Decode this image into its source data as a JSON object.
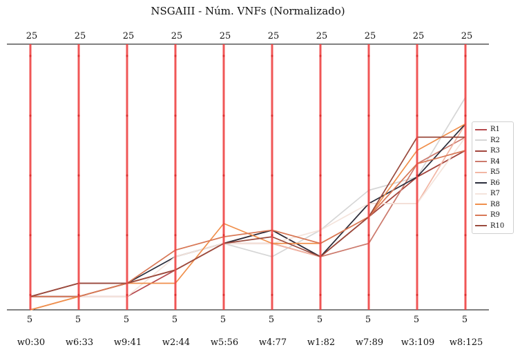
{
  "chart_data": {
    "type": "parallel-coordinates",
    "title": "NSGAIII - Núm. VNFs (Normalizado)",
    "axes": [
      "w0:30",
      "w6:33",
      "w9:41",
      "w2:44",
      "w5:56",
      "w4:77",
      "w1:82",
      "w7:89",
      "w3:109",
      "w8:125"
    ],
    "axis_min_label": "5",
    "axis_max_label": "25",
    "ylim": [
      5,
      25
    ],
    "grid": false,
    "legend_placement": "right",
    "axis_color": "#ee4444",
    "series": [
      {
        "name": "R1",
        "color": "#b5474c",
        "values": [
          6,
          6,
          6,
          8,
          10,
          10,
          9,
          12,
          15,
          17
        ]
      },
      {
        "name": "R2",
        "color": "#d6d6d6",
        "values": [
          5,
          6,
          7,
          8,
          10,
          9,
          11,
          14,
          15,
          21
        ]
      },
      {
        "name": "R3",
        "color": "#a2463d",
        "values": [
          6,
          7,
          7,
          8,
          10,
          11,
          9,
          12,
          15,
          17
        ]
      },
      {
        "name": "R4",
        "color": "#cc7a6d",
        "values": [
          6,
          6,
          7,
          8,
          10,
          11,
          9,
          10,
          16,
          18
        ]
      },
      {
        "name": "R5",
        "color": "#f2b6a4",
        "values": [
          5,
          6,
          7,
          8,
          10,
          10,
          9,
          13,
          13,
          19
        ]
      },
      {
        "name": "R6",
        "color": "#2a2d3b",
        "values": [
          6,
          6,
          7,
          9,
          10,
          11,
          9,
          13,
          15,
          19
        ]
      },
      {
        "name": "R7",
        "color": "#f4e4dc",
        "values": [
          5,
          6,
          6,
          9,
          10,
          10,
          11,
          13,
          13,
          18
        ]
      },
      {
        "name": "R8",
        "color": "#f08f4b",
        "values": [
          5,
          6,
          7,
          7,
          11.5,
          10,
          10,
          12,
          17,
          19
        ]
      },
      {
        "name": "R9",
        "color": "#d87856",
        "values": [
          6,
          6,
          7,
          9.5,
          10.5,
          11,
          10,
          12,
          16,
          17
        ]
      },
      {
        "name": "R10",
        "color": "#9a4a3d",
        "values": [
          6,
          7,
          7,
          8,
          10,
          10.5,
          9,
          12,
          18,
          18
        ]
      }
    ]
  }
}
